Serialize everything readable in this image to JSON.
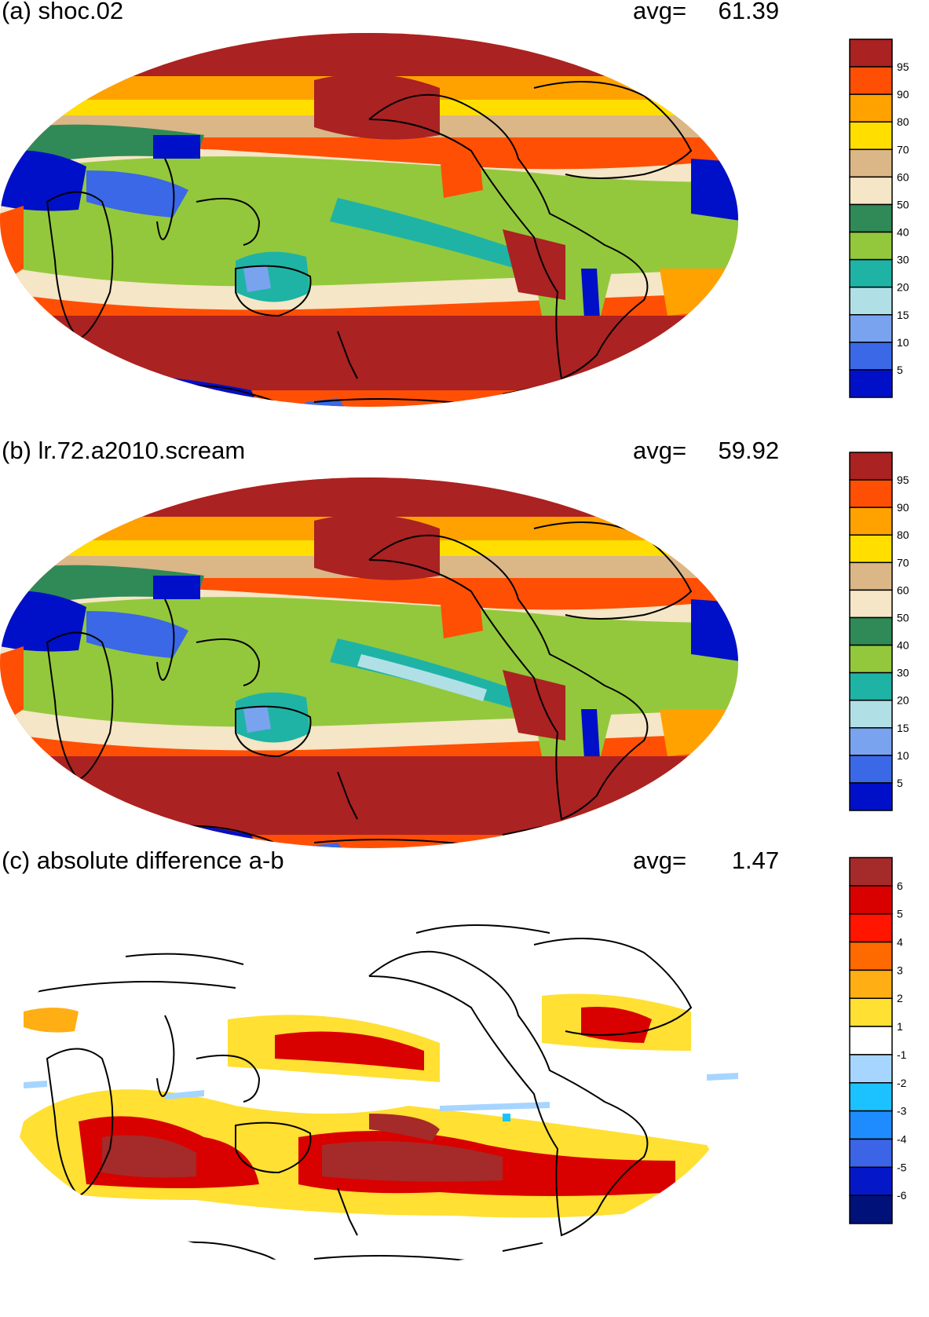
{
  "panels": [
    {
      "id": "a",
      "title": "(a) shoc.02",
      "avg_label": "avg=",
      "avg_value": "61.39"
    },
    {
      "id": "b",
      "title": "(b) lr.72.a2010.scream",
      "avg_label": "avg=",
      "avg_value": "59.92"
    },
    {
      "id": "c",
      "title": "(c) absolute difference a-b",
      "avg_label": "avg=",
      "avg_value": "1.47"
    }
  ],
  "colorbars": {
    "field": {
      "labels": [
        "95",
        "90",
        "80",
        "70",
        "60",
        "50",
        "40",
        "30",
        "20",
        "15",
        "10",
        "5"
      ],
      "colors": [
        "#aa2222",
        "#ff4f05",
        "#ffa200",
        "#ffde00",
        "#dbb686",
        "#f4e6c6",
        "#2f8a57",
        "#93c83c",
        "#1fb3a6",
        "#b0e0e5",
        "#7aa3ef",
        "#3a68e6",
        "#0010c8"
      ]
    },
    "diff": {
      "labels": [
        "6",
        "5",
        "4",
        "3",
        "2",
        "1",
        "-1",
        "-2",
        "-3",
        "-4",
        "-5",
        "-6"
      ],
      "colors": [
        "#a52a2a",
        "#d90000",
        "#ff1500",
        "#ff6a00",
        "#ffae14",
        "#ffe033",
        "#ffffff",
        "#a6d5ff",
        "#1cc2ff",
        "#1e8cff",
        "#3b64e6",
        "#0418c8",
        "#00117a"
      ]
    }
  }
}
